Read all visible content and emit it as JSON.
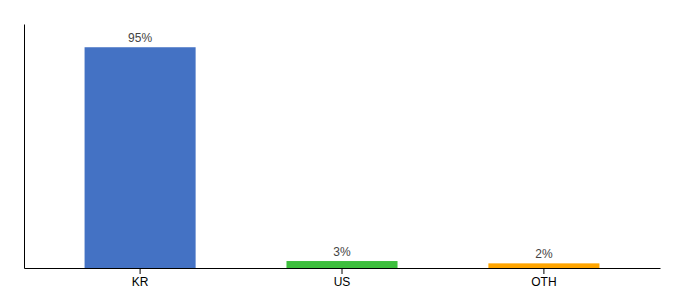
{
  "chart_data": {
    "type": "bar",
    "categories": [
      "KR",
      "US",
      "OTH"
    ],
    "values": [
      95,
      3,
      2
    ],
    "value_labels": [
      "95%",
      "3%",
      "2%"
    ],
    "colors": [
      "#4472C4",
      "#3EBF3E",
      "#FFA500"
    ],
    "ylim": [
      0,
      105
    ],
    "tick_labels": "x",
    "data_labels": true
  }
}
